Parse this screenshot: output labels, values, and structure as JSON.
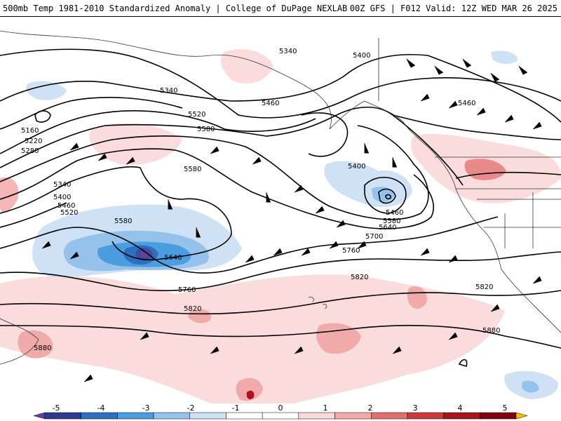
{
  "header": {
    "title": "500mb Temp 1981-2010 Standardized Anomaly | College of DuPage NEXLAB",
    "run_info": "00Z GFS | F012 Valid: 12Z WED MAR 26 2025"
  },
  "contour_labels": [
    "5160",
    "5220",
    "5280",
    "5340",
    "5340",
    "5340",
    "5400",
    "5400",
    "5400",
    "5460",
    "5460",
    "5460",
    "5460",
    "5520",
    "5520",
    "5580",
    "5580",
    "5580",
    "5580",
    "5640",
    "5640",
    "5700",
    "5760",
    "5760",
    "5820",
    "5820",
    "5820",
    "5880",
    "5880"
  ],
  "colorbar": {
    "tick_labels": [
      "-5",
      "-4",
      "-3",
      "-2",
      "-1",
      "0",
      "1",
      "2",
      "3",
      "4",
      "5"
    ],
    "colors": [
      "#6a3d9a",
      "#2b3c8c",
      "#2f6fc0",
      "#4a9ee0",
      "#94c2ea",
      "#cfe1f4",
      "#ffffff",
      "#ffffff",
      "#fbd9d9",
      "#f3aaaa",
      "#e07070",
      "#cc3a3a",
      "#a8141e",
      "#800010",
      "#f5c000"
    ]
  }
}
